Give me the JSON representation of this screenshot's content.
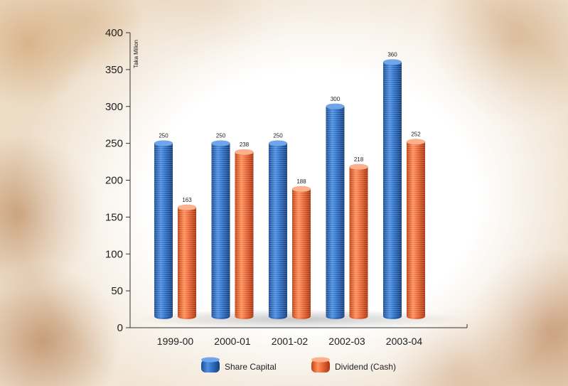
{
  "chart_data": {
    "type": "bar",
    "title": "",
    "xlabel": "",
    "ylabel": "Taka Milion",
    "categories": [
      "1999-00",
      "2000-01",
      "2001-02",
      "2002-03",
      "2003-04"
    ],
    "series": [
      {
        "name": "Share Capital",
        "values": [
          250,
          250,
          250,
          300,
          360
        ],
        "value_labels": [
          "250",
          "250",
          "250",
          "300",
          "360"
        ],
        "color": "#2f6fc4"
      },
      {
        "name": "Dividend (Cash)",
        "values": [
          163,
          238,
          188,
          218,
          252
        ],
        "value_labels": [
          "163",
          "238",
          "188",
          "218",
          "252"
        ],
        "color": "#e8683a"
      }
    ],
    "ylim": [
      0,
      400
    ],
    "yticks": [
      "0",
      "50",
      "100",
      "150",
      "200",
      "250",
      "300",
      "350",
      "400"
    ],
    "legend_position": "bottom",
    "grid": false
  }
}
